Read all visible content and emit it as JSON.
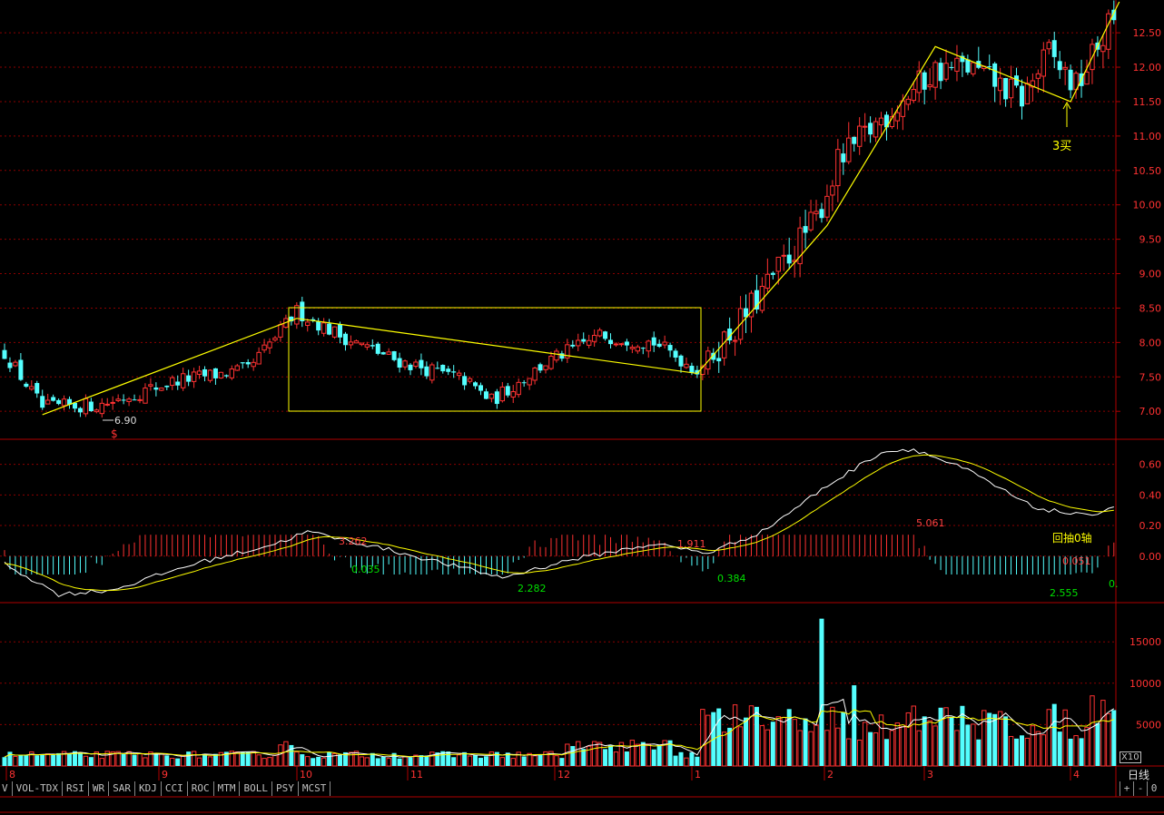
{
  "chart_data": {
    "type": "candlestick",
    "panels": {
      "price": {
        "yticks": [
          "7.00",
          "7.50",
          "8.00",
          "8.50",
          "9.00",
          "9.50",
          "10.00",
          "10.50",
          "11.00",
          "11.50",
          "12.00",
          "12.50"
        ],
        "ylim": [
          6.62,
          12.95
        ],
        "annotations": {
          "low_price": "6.90",
          "s_marker": "$",
          "buy3": "3买"
        }
      },
      "macd": {
        "yticks": [
          "0.00",
          "0.20",
          "0.40",
          "0.60"
        ],
        "ylim": [
          -0.28,
          0.74
        ],
        "value_labels": [
          "0.035",
          "3.262",
          "2.282",
          "1.911",
          "0.384",
          "5.061",
          "0.051",
          "2.555",
          "0."
        ],
        "note": "回抽0轴"
      },
      "volume": {
        "yticks": [
          "5000",
          "10000",
          "15000"
        ],
        "ylim": [
          0,
          19300
        ],
        "multiplier": "X10"
      }
    },
    "x_month_labels": [
      "8",
      "9",
      "10",
      "11",
      "12",
      "1",
      "2",
      "3",
      "4"
    ],
    "period": "日线"
  },
  "colors": {
    "up": "#ff3232",
    "down": "#54ffff",
    "grid": "#8b0000",
    "axis": "#b00000",
    "annotation": "#ffff00",
    "macd_label_green": "#00e000",
    "macd_label_red": "#ff4040",
    "diff": "#ffffff",
    "dea": "#ffff00"
  },
  "tabs": [
    "V",
    "VOL-TDX",
    "RSI",
    "WR",
    "SAR",
    "KDJ",
    "CCI",
    "ROC",
    "MTM",
    "BOLL",
    "PSY",
    "MCST"
  ],
  "right_buttons": [
    "+",
    "-",
    "0"
  ]
}
